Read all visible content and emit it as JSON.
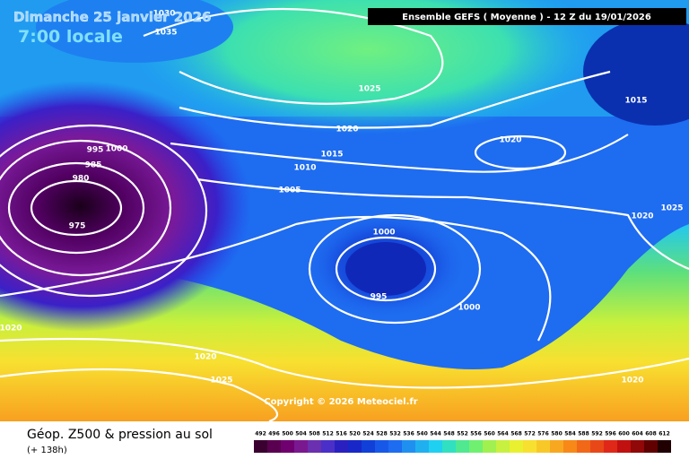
{
  "header": {
    "date": "Dimanche 25 janvier 2026",
    "time": "7:00 locale",
    "run": "Ensemble GEFS  ( Moyenne )  -  12 Z du 19/01/2026"
  },
  "isobar_labels": [
    "1030",
    "1035",
    "1025",
    "1020",
    "1015",
    "1010",
    "1005",
    "1000",
    "995",
    "1000",
    "1020",
    "1015",
    "1020",
    "1025",
    "1020",
    "1020",
    "1025",
    "1020",
    "995",
    "1000",
    "985",
    "980",
    "975"
  ],
  "footer": {
    "title": "Géop. Z500 & pression au sol",
    "lead": "(+ 138h)",
    "copyright": "Copyright © 2026 Meteociel.fr"
  },
  "legend": {
    "labels": [
      "492",
      "496",
      "500",
      "504",
      "508",
      "512",
      "516",
      "520",
      "524",
      "528",
      "532",
      "536",
      "540",
      "544",
      "548",
      "552",
      "556",
      "560",
      "564",
      "568",
      "572",
      "576",
      "580",
      "584",
      "588",
      "592",
      "596",
      "600",
      "604",
      "608",
      "612"
    ]
  }
}
